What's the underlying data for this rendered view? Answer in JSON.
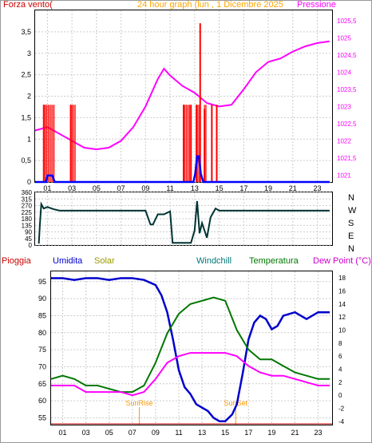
{
  "chart_data": [
    {
      "type": "line",
      "title": "24 hour graph (lun , 1 Dicembre 2025",
      "left_axis_label": "Forza vento(",
      "right_axis_label": "Pressione",
      "x_ticks": [
        "01",
        "03",
        "05",
        "07",
        "09",
        "11",
        "13",
        "15",
        "17",
        "19",
        "21",
        "23"
      ],
      "y_left_ticks": [
        "0",
        "0,5",
        "1",
        "1,5",
        "2",
        "2,5",
        "3",
        "3,5"
      ],
      "y_left_range": [
        0,
        4
      ],
      "y_right_ticks": [
        "1021",
        "1021,5",
        "1022",
        "1022,5",
        "1023",
        "1023,5",
        "1024",
        "1024,5",
        "1025",
        "1025,5"
      ],
      "y_right_range": [
        1020.8,
        1025.8
      ],
      "x_range": [
        0,
        24.2
      ],
      "series": [
        {
          "key": "pressure",
          "axis": "right",
          "color": "#ff00ff",
          "x": [
            0,
            1,
            2,
            3,
            3.5,
            4,
            5,
            6,
            7,
            8,
            9,
            10,
            10.5,
            11,
            12,
            13,
            14,
            15,
            16,
            17,
            18,
            19,
            20,
            21,
            22,
            23,
            24
          ],
          "y": [
            1022.3,
            1022.4,
            1022.2,
            1022.0,
            1021.9,
            1021.8,
            1021.75,
            1021.8,
            1022.0,
            1022.4,
            1023.0,
            1023.8,
            1024.1,
            1023.9,
            1023.6,
            1023.4,
            1023.1,
            1023.0,
            1023.05,
            1023.5,
            1024.0,
            1024.3,
            1024.4,
            1024.6,
            1024.75,
            1024.85,
            1024.9
          ]
        },
        {
          "key": "wind_gust",
          "axis": "left",
          "color": "#ff0000",
          "x": [
            0.7,
            2.9,
            12.1,
            12.7,
            13.15,
            13.45,
            13.8,
            14.4,
            14.8
          ],
          "y": [
            1.8,
            1.8,
            1.8,
            1.8,
            1.8,
            3.7,
            1.7,
            1.8,
            1.8
          ]
        },
        {
          "key": "wind_avg",
          "axis": "left",
          "color": "#0000ff",
          "x": [
            0,
            0.9,
            1.0,
            1.2,
            1.4,
            1.6,
            12.7,
            12.9,
            13.05,
            13.2,
            13.35,
            13.5,
            13.7,
            13.9,
            14.1,
            24
          ],
          "y": [
            0,
            0,
            0.15,
            0.15,
            0.15,
            0,
            0,
            0,
            0.2,
            0.6,
            0.6,
            0.2,
            0,
            0,
            0,
            0
          ]
        }
      ]
    },
    {
      "type": "line",
      "title": "",
      "y_ticks": [
        "360",
        "315",
        "270",
        "225",
        "180",
        "135",
        "90",
        "45",
        "0"
      ],
      "y_range": [
        0,
        360
      ],
      "compass_labels": [
        "N",
        "W",
        "S",
        "E",
        "N"
      ],
      "x_range": [
        0,
        24.2
      ],
      "series": [
        {
          "key": "wind_direction",
          "color": "#003333",
          "x": [
            0.3,
            0.4,
            0.5,
            0.7,
            1,
            1.5,
            2,
            3,
            4,
            5,
            6,
            7,
            8,
            9,
            9.4,
            9.6,
            10,
            10.5,
            11,
            11.2,
            11.8,
            12.3,
            12.7,
            13,
            13.2,
            13.4,
            13.6,
            14,
            14.3,
            14.7,
            15,
            16,
            17,
            18,
            19,
            20,
            21,
            22,
            23,
            24
          ],
          "y": [
            10,
            150,
            280,
            250,
            260,
            245,
            235,
            235,
            235,
            235,
            235,
            235,
            235,
            235,
            140,
            140,
            210,
            210,
            230,
            15,
            15,
            15,
            15,
            100,
            300,
            80,
            150,
            50,
            190,
            250,
            235,
            235,
            235,
            235,
            235,
            235,
            235,
            235,
            235,
            235
          ]
        }
      ]
    },
    {
      "type": "line",
      "title": "",
      "legend": {
        "pioggia": "Pioggia",
        "umidita": "Umidita",
        "solar": "Solar",
        "windchill": "Windchill",
        "temperatura": "Temperatura",
        "dewpoint": "Dew Point (°C)"
      },
      "annotations": {
        "sunrise": "SunRise",
        "sunset": "SunSet"
      },
      "sunrise_x": 7.6,
      "sunset_x": 15.9,
      "x_ticks": [
        "01",
        "03",
        "05",
        "07",
        "09",
        "11",
        "13",
        "15",
        "17",
        "19",
        "21",
        "23"
      ],
      "y_left_ticks": [
        "55",
        "60",
        "65",
        "70",
        "75",
        "80",
        "85",
        "90",
        "95"
      ],
      "y_left_range": [
        53,
        98
      ],
      "y_right_ticks": [
        "-4",
        "-2",
        "0",
        "2",
        "4",
        "6",
        "8",
        "10",
        "12",
        "14",
        "16",
        "18"
      ],
      "y_right_range": [
        -4.5,
        19
      ],
      "x_range": [
        0,
        24.2
      ],
      "series": [
        {
          "key": "humidity",
          "axis": "left",
          "color": "#0000cc",
          "x": [
            0,
            1,
            2,
            3,
            4,
            5,
            6,
            7,
            8,
            9,
            9.5,
            10,
            10.5,
            11,
            11.5,
            12,
            12.5,
            13,
            13.5,
            14,
            14.5,
            15,
            15.3,
            15.6,
            16,
            16.5,
            17,
            17.5,
            18,
            18.5,
            19,
            19.5,
            20,
            21,
            22,
            23,
            24
          ],
          "y": [
            96,
            96,
            95.5,
            96,
            96,
            95.5,
            96,
            96,
            95.5,
            94,
            91,
            86,
            78,
            69,
            64,
            62,
            59,
            58,
            57,
            55,
            54,
            54,
            55,
            56,
            59,
            68,
            78,
            83,
            85,
            84,
            81,
            82,
            85,
            86,
            84,
            86,
            86
          ]
        },
        {
          "key": "temperature",
          "axis": "right",
          "color": "#007700",
          "x": [
            0,
            1,
            2,
            3,
            4,
            5,
            6,
            7,
            8,
            9,
            10,
            11,
            12,
            13,
            14,
            15,
            16,
            17,
            18,
            19,
            20,
            21,
            22,
            23,
            24
          ],
          "y": [
            2.5,
            3.0,
            2.5,
            1.5,
            1.5,
            1.0,
            0.5,
            0.5,
            1.5,
            5.0,
            9.5,
            12.5,
            14.0,
            14.5,
            15.0,
            14.5,
            10.0,
            7.0,
            5.5,
            5.5,
            4.5,
            3.5,
            3.0,
            2.5,
            2.5
          ]
        },
        {
          "key": "dewpoint",
          "axis": "right",
          "color": "#ff00ff",
          "x": [
            0,
            1,
            2,
            3,
            4,
            5,
            6,
            7,
            8,
            9,
            10,
            11,
            12,
            13,
            14,
            15,
            16,
            17,
            18,
            19,
            20,
            21,
            22,
            23,
            24
          ],
          "y": [
            1.5,
            1.5,
            1.5,
            0.5,
            0.5,
            0.5,
            0.5,
            0.0,
            0.5,
            2.5,
            5.0,
            6.0,
            6.5,
            6.5,
            6.5,
            6.5,
            6.0,
            4.5,
            3.5,
            3.0,
            3.0,
            2.5,
            2.0,
            1.5,
            1.5
          ]
        }
      ]
    }
  ]
}
